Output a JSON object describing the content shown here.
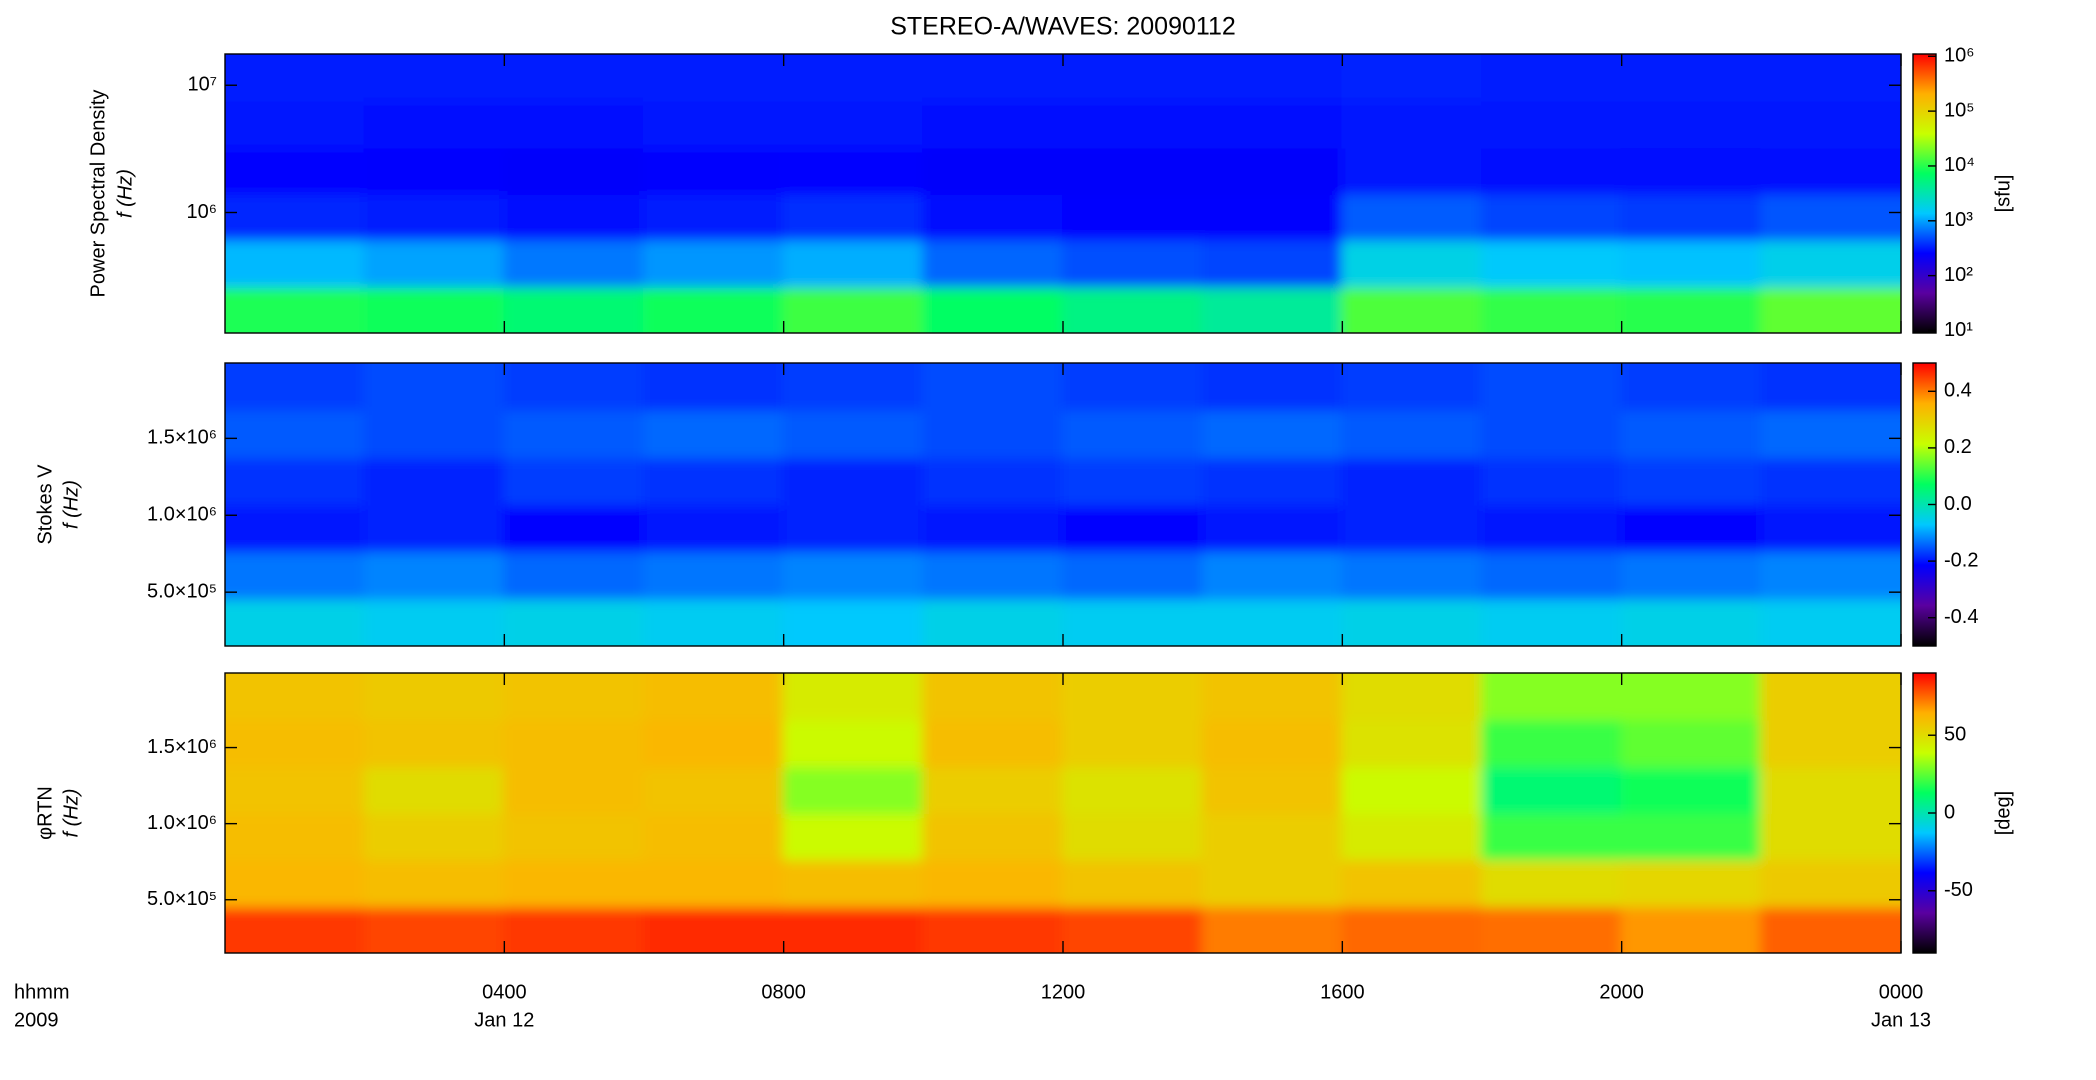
{
  "chart_data": [
    {
      "type": "heatmap",
      "title": "STEREO-A/WAVES: 20090112",
      "ylabel": [
        "Power Spectral Density",
        "f (Hz)"
      ],
      "ylog": true,
      "ylim": [
        113000,
        17600000
      ],
      "yticks": [
        {
          "value": 1000000,
          "label": "10⁶"
        },
        {
          "value": 10000000,
          "label": "10⁷"
        }
      ],
      "xlim": [
        0,
        24
      ],
      "x": [
        1,
        3,
        5,
        7,
        9,
        11,
        13,
        15,
        17,
        19,
        21,
        23
      ],
      "y": [
        170000,
        400000,
        930000,
        2100000,
        5000000,
        11500000
      ],
      "z": [
        [
          9000,
          8000,
          6000,
          8000,
          12000,
          7000,
          5000,
          4000,
          14000,
          11000,
          10000,
          16000
        ],
        [
          1200,
          1000,
          700,
          900,
          1100,
          600,
          500,
          450,
          1800,
          1400,
          1300,
          1700
        ],
        [
          350,
          320,
          280,
          330,
          380,
          280,
          250,
          250,
          550,
          450,
          420,
          520
        ],
        [
          260,
          250,
          240,
          250,
          260,
          240,
          240,
          240,
          300,
          280,
          270,
          280
        ],
        [
          300,
          290,
          290,
          300,
          300,
          290,
          290,
          290,
          310,
          300,
          300,
          300
        ],
        [
          330,
          330,
          320,
          330,
          330,
          320,
          320,
          320,
          340,
          330,
          330,
          330
        ]
      ],
      "colormap": [
        "#000000",
        "#5a00a0",
        "#0000ff",
        "#00c8ff",
        "#00ff60",
        "#c8ff00",
        "#ffb000",
        "#ff0000"
      ],
      "colorbar": {
        "log": true,
        "lim": [
          9,
          1100000
        ],
        "ticks": [
          {
            "value": 10,
            "label": "10¹"
          },
          {
            "value": 100,
            "label": "10²"
          },
          {
            "value": 1000,
            "label": "10³"
          },
          {
            "value": 10000,
            "label": "10⁴"
          },
          {
            "value": 100000,
            "label": "10⁵"
          },
          {
            "value": 1000000,
            "label": "10⁶"
          }
        ],
        "label": "[sfu]"
      }
    },
    {
      "type": "heatmap",
      "ylabel": [
        "Stokes V",
        "f (Hz)"
      ],
      "ylog": false,
      "ylim": [
        150000,
        1990000
      ],
      "yticks": [
        {
          "value": 500000,
          "label": "5.0×10⁵"
        },
        {
          "value": 1000000,
          "label": "1.0×10⁶"
        },
        {
          "value": 1500000,
          "label": "1.5×10⁶"
        }
      ],
      "xlim": [
        0,
        24
      ],
      "x": [
        1,
        3,
        5,
        7,
        9,
        11,
        13,
        15,
        17,
        19,
        21,
        23
      ],
      "y": [
        303000,
        610000,
        920000,
        1220000,
        1530000,
        1840000
      ],
      "z": [
        [
          -0.05,
          -0.06,
          -0.05,
          -0.06,
          -0.07,
          -0.05,
          -0.06,
          -0.06,
          -0.05,
          -0.06,
          -0.05,
          -0.06
        ],
        [
          -0.13,
          -0.12,
          -0.14,
          -0.13,
          -0.12,
          -0.13,
          -0.14,
          -0.12,
          -0.13,
          -0.14,
          -0.13,
          -0.12
        ],
        [
          -0.2,
          -0.19,
          -0.21,
          -0.2,
          -0.19,
          -0.2,
          -0.21,
          -0.2,
          -0.19,
          -0.2,
          -0.21,
          -0.2
        ],
        [
          -0.18,
          -0.19,
          -0.17,
          -0.18,
          -0.19,
          -0.18,
          -0.17,
          -0.18,
          -0.19,
          -0.18,
          -0.17,
          -0.18
        ],
        [
          -0.15,
          -0.16,
          -0.15,
          -0.14,
          -0.15,
          -0.16,
          -0.15,
          -0.14,
          -0.15,
          -0.16,
          -0.15,
          -0.14
        ],
        [
          -0.17,
          -0.16,
          -0.17,
          -0.18,
          -0.17,
          -0.16,
          -0.17,
          -0.18,
          -0.17,
          -0.16,
          -0.17,
          -0.18
        ]
      ],
      "colormap": [
        "#000000",
        "#5a00a0",
        "#0000ff",
        "#00c8ff",
        "#00ff60",
        "#c8ff00",
        "#ffb000",
        "#ff0000"
      ],
      "colorbar": {
        "log": false,
        "lim": [
          -0.5,
          0.5
        ],
        "ticks": [
          -0.4,
          -0.2,
          {
            "value": 0,
            "label": "0.0"
          },
          0.2,
          0.4
        ]
      }
    },
    {
      "type": "heatmap",
      "ylabel": [
        "φRTN",
        "f (Hz)"
      ],
      "ylog": false,
      "ylim": [
        150000,
        1990000
      ],
      "yticks": [
        {
          "value": 500000,
          "label": "5.0×10⁵"
        },
        {
          "value": 1000000,
          "label": "1.0×10⁶"
        },
        {
          "value": 1500000,
          "label": "1.5×10⁶"
        }
      ],
      "xlim": [
        0,
        24
      ],
      "x": [
        1,
        3,
        5,
        7,
        9,
        11,
        13,
        15,
        17,
        19,
        21,
        23
      ],
      "y": [
        303000,
        610000,
        920000,
        1220000,
        1530000,
        1840000
      ],
      "z": [
        [
          82,
          80,
          82,
          84,
          84,
          82,
          80,
          72,
          75,
          74,
          68,
          76
        ],
        [
          62,
          60,
          62,
          62,
          60,
          62,
          58,
          55,
          58,
          50,
          52,
          56
        ],
        [
          60,
          55,
          58,
          60,
          40,
          58,
          50,
          55,
          45,
          20,
          20,
          50
        ],
        [
          58,
          50,
          60,
          58,
          30,
          55,
          48,
          58,
          40,
          10,
          15,
          50
        ],
        [
          60,
          58,
          60,
          62,
          40,
          60,
          55,
          60,
          48,
          20,
          25,
          55
        ],
        [
          58,
          56,
          58,
          60,
          45,
          58,
          55,
          58,
          50,
          30,
          30,
          55
        ]
      ],
      "colormap": [
        "#000000",
        "#5a00a0",
        "#0000ff",
        "#00c8ff",
        "#00ff60",
        "#c8ff00",
        "#ffb000",
        "#ff0000"
      ],
      "colorbar": {
        "log": false,
        "lim": [
          -90,
          90
        ],
        "ticks": [
          -50,
          0,
          50
        ],
        "label": "[deg]"
      },
      "xticks": [
        {
          "value": 4,
          "label": "0400"
        },
        {
          "value": 8,
          "label": "0800"
        },
        {
          "value": 12,
          "label": "1200"
        },
        {
          "value": 16,
          "label": "1600"
        },
        {
          "value": 20,
          "label": "2000"
        },
        {
          "value": 24,
          "label": "0000"
        }
      ],
      "xtick_dates": [
        {
          "value": 4,
          "label": "Jan 12"
        },
        {
          "value": 24,
          "label": "Jan 13"
        }
      ],
      "xlabel": [
        "hhmm",
        "2009"
      ]
    }
  ]
}
